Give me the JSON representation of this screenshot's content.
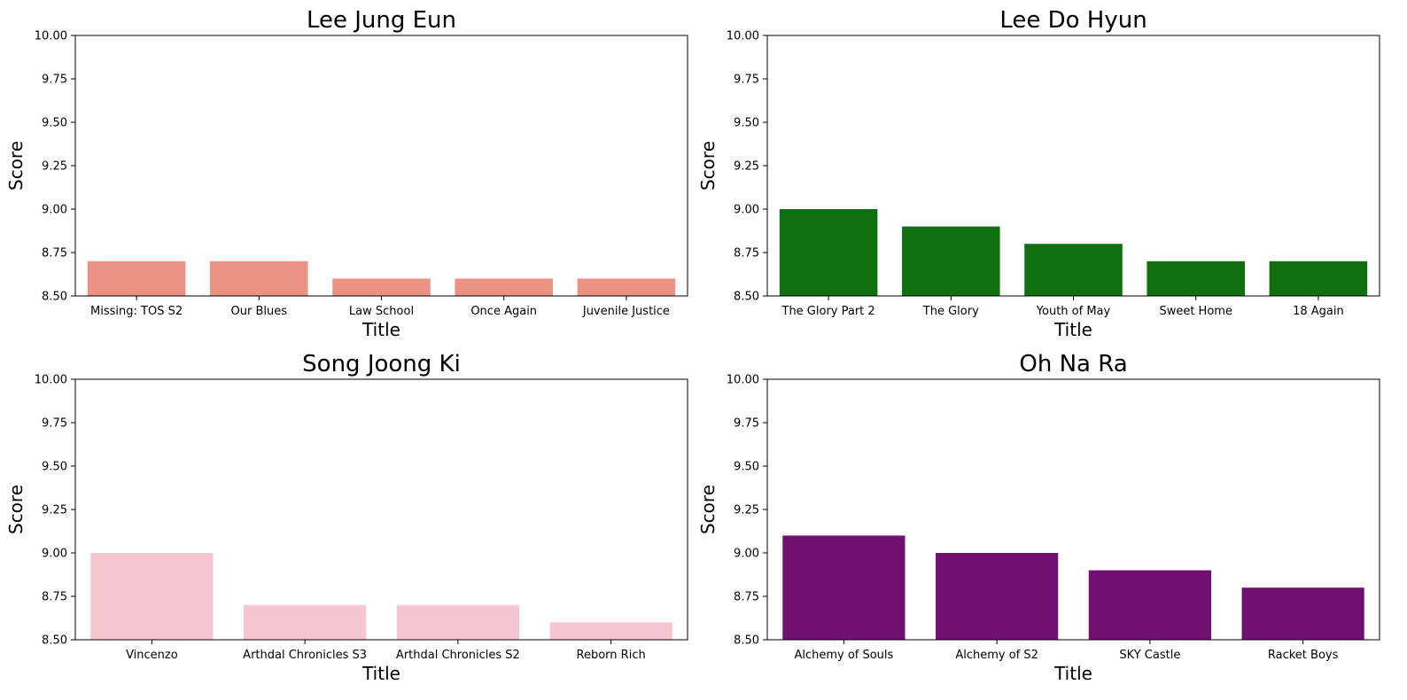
{
  "chart_data": [
    {
      "type": "bar",
      "title": "Lee Jung Eun",
      "xlabel": "Title",
      "ylabel": "Score",
      "ylim": [
        8.5,
        10.0
      ],
      "yticks": [
        "8.50",
        "8.75",
        "9.00",
        "9.25",
        "9.50",
        "9.75",
        "10.00"
      ],
      "color": "#eb9285",
      "categories": [
        "Missing: TOS S2",
        "Our Blues",
        "Law School",
        "Once Again",
        "Juvenile Justice"
      ],
      "values": [
        8.7,
        8.7,
        8.6,
        8.6,
        8.6
      ]
    },
    {
      "type": "bar",
      "title": "Lee Do Hyun",
      "xlabel": "Title",
      "ylabel": "Score",
      "ylim": [
        8.5,
        10.0
      ],
      "yticks": [
        "8.50",
        "8.75",
        "9.00",
        "9.25",
        "9.50",
        "9.75",
        "10.00"
      ],
      "color": "#107010",
      "categories": [
        "The Glory Part 2",
        "The Glory",
        "Youth of May",
        "Sweet Home",
        "18 Again"
      ],
      "values": [
        9.0,
        8.9,
        8.8,
        8.7,
        8.7
      ]
    },
    {
      "type": "bar",
      "title": "Song Joong Ki",
      "xlabel": "Title",
      "ylabel": "Score",
      "ylim": [
        8.5,
        10.0
      ],
      "yticks": [
        "8.50",
        "8.75",
        "9.00",
        "9.25",
        "9.50",
        "9.75",
        "10.00"
      ],
      "color": "#f7c6d0",
      "categories": [
        "Vincenzo",
        "Arthdal Chronicles S3",
        "Arthdal Chronicles S2",
        "Reborn Rich"
      ],
      "values": [
        9.0,
        8.7,
        8.7,
        8.6
      ]
    },
    {
      "type": "bar",
      "title": "Oh Na Ra",
      "xlabel": "Title",
      "ylabel": "Score",
      "ylim": [
        8.5,
        10.0
      ],
      "yticks": [
        "8.50",
        "8.75",
        "9.00",
        "9.25",
        "9.50",
        "9.75",
        "10.00"
      ],
      "color": "#701070",
      "categories": [
        "Alchemy of Souls",
        "Alchemy of S2",
        "SKY Castle",
        "Racket Boys"
      ],
      "values": [
        9.1,
        9.0,
        8.9,
        8.8
      ]
    }
  ]
}
